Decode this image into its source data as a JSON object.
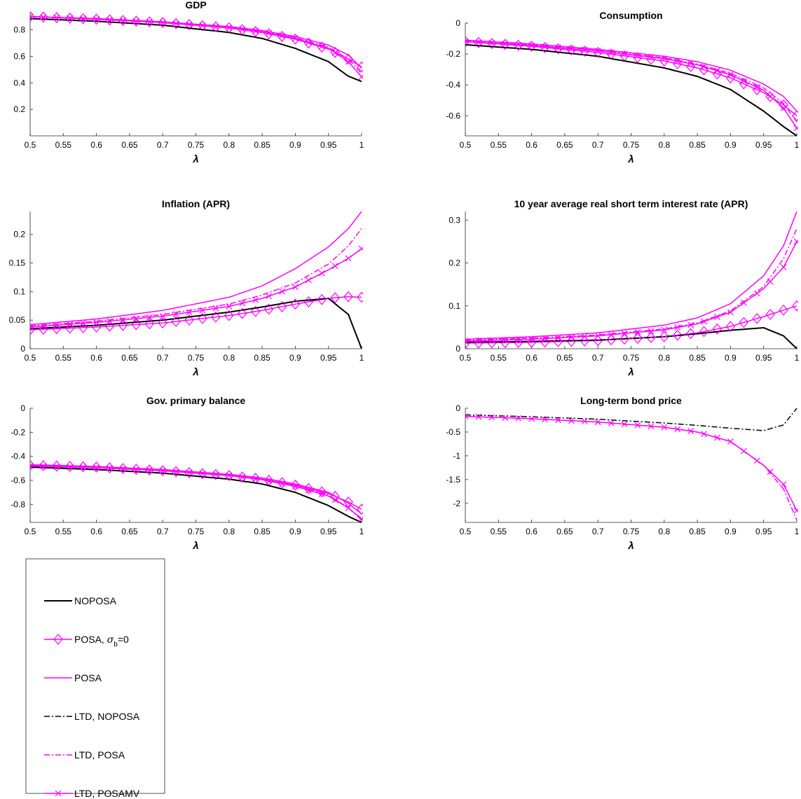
{
  "chart_data": [
    {
      "type": "line",
      "title": "GDP",
      "xlabel": "λ",
      "ylabel": "",
      "xlim": [
        0.5,
        1.0
      ],
      "ylim": [
        0,
        0.93
      ],
      "xticks": [
        "0.5",
        "0.55",
        "0.6",
        "0.65",
        "0.7",
        "0.75",
        "0.8",
        "0.85",
        "0.9",
        "0.95",
        "1"
      ],
      "yticks": [
        "0.2",
        "0.4",
        "0.6",
        "0.8"
      ],
      "ytick_values": [
        0.2,
        0.4,
        0.6,
        0.8
      ],
      "x": [
        0.5,
        0.6,
        0.7,
        0.8,
        0.85,
        0.9,
        0.95,
        0.98,
        1.0
      ],
      "series": [
        {
          "name": "NOPOSA",
          "values": [
            0.885,
            0.865,
            0.835,
            0.78,
            0.735,
            0.66,
            0.56,
            0.45,
            0.41
          ]
        },
        {
          "name": "POSA, σb=0",
          "values": [
            0.9,
            0.88,
            0.855,
            0.815,
            0.78,
            0.73,
            0.655,
            0.58,
            0.52
          ]
        },
        {
          "name": "POSA",
          "values": [
            0.9,
            0.885,
            0.86,
            0.825,
            0.795,
            0.75,
            0.685,
            0.61,
            0.51
          ]
        },
        {
          "name": "LTD, NOPOSA",
          "values": [
            0.885,
            0.865,
            0.835,
            0.78,
            0.735,
            0.66,
            0.56,
            0.45,
            0.41
          ]
        },
        {
          "name": "LTD, POSA",
          "values": [
            0.9,
            0.885,
            0.86,
            0.82,
            0.79,
            0.74,
            0.67,
            0.58,
            0.47
          ]
        },
        {
          "name": "LTD, POSAMV",
          "values": [
            0.9,
            0.88,
            0.855,
            0.815,
            0.785,
            0.735,
            0.66,
            0.56,
            0.445
          ]
        }
      ]
    },
    {
      "type": "line",
      "title": "Consumption",
      "xlabel": "λ",
      "ylabel": "",
      "xlim": [
        0.5,
        1.0
      ],
      "ylim": [
        -0.73,
        0
      ],
      "xticks": [
        "0.5",
        "0.55",
        "0.6",
        "0.65",
        "0.7",
        "0.75",
        "0.8",
        "0.85",
        "0.9",
        "0.95",
        "1"
      ],
      "yticks": [
        "0",
        "-0.2",
        "-0.4",
        "-0.6"
      ],
      "ytick_values": [
        0,
        -0.2,
        -0.4,
        -0.6
      ],
      "x": [
        0.5,
        0.6,
        0.7,
        0.8,
        0.85,
        0.9,
        0.95,
        0.98,
        1.0
      ],
      "series": [
        {
          "name": "NOPOSA",
          "values": [
            -0.14,
            -0.17,
            -0.215,
            -0.29,
            -0.345,
            -0.43,
            -0.57,
            -0.67,
            -0.73
          ]
        },
        {
          "name": "POSA, σb=0",
          "values": [
            -0.12,
            -0.15,
            -0.19,
            -0.245,
            -0.29,
            -0.355,
            -0.45,
            -0.53,
            -0.6
          ]
        },
        {
          "name": "POSA",
          "values": [
            -0.11,
            -0.135,
            -0.17,
            -0.215,
            -0.25,
            -0.305,
            -0.395,
            -0.475,
            -0.57
          ]
        },
        {
          "name": "LTD, NOPOSA",
          "values": [
            -0.14,
            -0.17,
            -0.215,
            -0.29,
            -0.345,
            -0.43,
            -0.57,
            -0.67,
            -0.73
          ]
        },
        {
          "name": "LTD, POSA",
          "values": [
            -0.115,
            -0.14,
            -0.175,
            -0.225,
            -0.265,
            -0.325,
            -0.42,
            -0.52,
            -0.64
          ]
        },
        {
          "name": "LTD, POSAMV",
          "values": [
            -0.12,
            -0.145,
            -0.18,
            -0.23,
            -0.27,
            -0.335,
            -0.435,
            -0.55,
            -0.68
          ]
        }
      ]
    },
    {
      "type": "line",
      "title": "Inflation (APR)",
      "xlabel": "λ",
      "ylabel": "",
      "xlim": [
        0.5,
        1.0
      ],
      "ylim": [
        0,
        0.24
      ],
      "xticks": [
        "0.5",
        "0.55",
        "0.6",
        "0.65",
        "0.7",
        "0.75",
        "0.8",
        "0.85",
        "0.9",
        "0.95",
        "1"
      ],
      "yticks": [
        "0",
        "0.05",
        "0.1",
        "0.15",
        "0.2"
      ],
      "ytick_values": [
        0,
        0.05,
        0.1,
        0.15,
        0.2
      ],
      "x": [
        0.5,
        0.6,
        0.7,
        0.8,
        0.85,
        0.9,
        0.95,
        0.98,
        1.0
      ],
      "series": [
        {
          "name": "NOPOSA",
          "values": [
            0.035,
            0.041,
            0.05,
            0.064,
            0.073,
            0.083,
            0.088,
            0.06,
            0.0
          ]
        },
        {
          "name": "POSA, σb=0",
          "values": [
            0.033,
            0.038,
            0.045,
            0.058,
            0.067,
            0.078,
            0.088,
            0.091,
            0.09
          ]
        },
        {
          "name": "POSA",
          "values": [
            0.042,
            0.052,
            0.067,
            0.09,
            0.11,
            0.14,
            0.178,
            0.21,
            0.24
          ]
        },
        {
          "name": "LTD, NOPOSA",
          "values": [
            0.035,
            0.041,
            0.05,
            0.064,
            0.073,
            0.083,
            0.088,
            0.06,
            0.0
          ]
        },
        {
          "name": "LTD, POSA",
          "values": [
            0.04,
            0.048,
            0.06,
            0.078,
            0.094,
            0.115,
            0.148,
            0.18,
            0.21
          ]
        },
        {
          "name": "LTD, POSAMV",
          "values": [
            0.038,
            0.046,
            0.057,
            0.074,
            0.088,
            0.108,
            0.138,
            0.158,
            0.175
          ]
        }
      ]
    },
    {
      "type": "line",
      "title": "10 year average real short term interest rate (APR)",
      "xlabel": "λ",
      "ylabel": "",
      "xlim": [
        0.5,
        1.0
      ],
      "ylim": [
        0,
        0.32
      ],
      "xticks": [
        "0.5",
        "0.55",
        "0.6",
        "0.65",
        "0.7",
        "0.75",
        "0.8",
        "0.85",
        "0.9",
        "0.95",
        "1"
      ],
      "yticks": [
        "0",
        "0.1",
        "0.2",
        "0.3"
      ],
      "ytick_values": [
        0,
        0.1,
        0.2,
        0.3
      ],
      "x": [
        0.5,
        0.6,
        0.7,
        0.8,
        0.85,
        0.9,
        0.95,
        0.98,
        1.0
      ],
      "series": [
        {
          "name": "NOPOSA",
          "values": [
            0.015,
            0.017,
            0.02,
            0.028,
            0.035,
            0.043,
            0.049,
            0.03,
            0.0
          ]
        },
        {
          "name": "POSA, σb=0",
          "values": [
            0.013,
            0.015,
            0.019,
            0.028,
            0.037,
            0.052,
            0.075,
            0.09,
            0.1
          ]
        },
        {
          "name": "POSA",
          "values": [
            0.022,
            0.028,
            0.037,
            0.055,
            0.072,
            0.105,
            0.17,
            0.24,
            0.32
          ]
        },
        {
          "name": "LTD, NOPOSA",
          "values": [
            0.015,
            0.017,
            0.02,
            0.028,
            0.035,
            0.043,
            0.049,
            0.03,
            0.0
          ]
        },
        {
          "name": "LTD, POSA",
          "values": [
            0.02,
            0.025,
            0.032,
            0.046,
            0.06,
            0.088,
            0.145,
            0.21,
            0.28
          ]
        },
        {
          "name": "LTD, POSAMV",
          "values": [
            0.018,
            0.022,
            0.03,
            0.044,
            0.058,
            0.085,
            0.14,
            0.19,
            0.25
          ]
        }
      ]
    },
    {
      "type": "line",
      "title": "Gov. primary balance",
      "xlabel": "λ",
      "ylabel": "",
      "xlim": [
        0.5,
        1.0
      ],
      "ylim": [
        -0.95,
        0
      ],
      "xticks": [
        "0.5",
        "0.55",
        "0.6",
        "0.65",
        "0.7",
        "0.75",
        "0.8",
        "0.85",
        "0.9",
        "0.95",
        "1"
      ],
      "yticks": [
        "0",
        "-0.2",
        "-0.4",
        "-0.6",
        "-0.8"
      ],
      "ytick_values": [
        0,
        -0.2,
        -0.4,
        -0.6,
        -0.8
      ],
      "x": [
        0.5,
        0.6,
        0.7,
        0.8,
        0.85,
        0.9,
        0.95,
        0.98,
        1.0
      ],
      "series": [
        {
          "name": "NOPOSA",
          "values": [
            -0.49,
            -0.51,
            -0.54,
            -0.59,
            -0.63,
            -0.7,
            -0.81,
            -0.9,
            -0.95
          ]
        },
        {
          "name": "POSA, σb=0",
          "values": [
            -0.475,
            -0.49,
            -0.52,
            -0.56,
            -0.59,
            -0.64,
            -0.71,
            -0.78,
            -0.84
          ]
        },
        {
          "name": "POSA",
          "values": [
            -0.47,
            -0.485,
            -0.51,
            -0.55,
            -0.58,
            -0.63,
            -0.7,
            -0.79,
            -0.88
          ]
        },
        {
          "name": "LTD, NOPOSA",
          "values": [
            -0.49,
            -0.51,
            -0.54,
            -0.59,
            -0.63,
            -0.7,
            -0.81,
            -0.9,
            -0.95
          ]
        },
        {
          "name": "LTD, POSA",
          "values": [
            -0.475,
            -0.49,
            -0.515,
            -0.555,
            -0.59,
            -0.64,
            -0.72,
            -0.83,
            -0.93
          ]
        },
        {
          "name": "LTD, POSAMV",
          "values": [
            -0.48,
            -0.495,
            -0.52,
            -0.56,
            -0.595,
            -0.65,
            -0.73,
            -0.83,
            -0.92
          ]
        }
      ]
    },
    {
      "type": "line",
      "title": "Long-term bond price",
      "xlabel": "λ",
      "ylabel": "",
      "xlim": [
        0.5,
        1.0
      ],
      "ylim": [
        -2.4,
        0
      ],
      "xticks": [
        "0.5",
        "0.55",
        "0.6",
        "0.65",
        "0.7",
        "0.75",
        "0.8",
        "0.85",
        "0.9",
        "0.95",
        "1"
      ],
      "yticks": [
        "0",
        "-0.5",
        "-1",
        "-1.5",
        "-2"
      ],
      "ytick_values": [
        0,
        -0.5,
        -1,
        -1.5,
        -2
      ],
      "x": [
        0.5,
        0.6,
        0.7,
        0.8,
        0.85,
        0.9,
        0.95,
        0.98,
        1.0
      ],
      "series": [
        {
          "name": "LTD, NOPOSA",
          "values": [
            -0.14,
            -0.18,
            -0.23,
            -0.31,
            -0.36,
            -0.42,
            -0.47,
            -0.35,
            0.0
          ]
        },
        {
          "name": "LTD, POSA",
          "values": [
            -0.17,
            -0.22,
            -0.29,
            -0.4,
            -0.5,
            -0.7,
            -1.2,
            -1.7,
            -2.35
          ]
        },
        {
          "name": "LTD, POSAMV",
          "values": [
            -0.17,
            -0.22,
            -0.29,
            -0.4,
            -0.5,
            -0.7,
            -1.2,
            -1.6,
            -2.15
          ]
        }
      ]
    }
  ],
  "legend": {
    "placement": "bottom-left",
    "entries": [
      {
        "label": "NOPOSA",
        "color": "#000000",
        "dash": "solid",
        "marker": "none"
      },
      {
        "label": "POSA, ",
        "sym": "σ",
        "sub": "b",
        "tail": "=0",
        "color": "#ff00ff",
        "dash": "solid",
        "marker": "diamond"
      },
      {
        "label": "POSA",
        "color": "#ff00ff",
        "dash": "solid",
        "marker": "none"
      },
      {
        "label": "LTD, NOPOSA",
        "color": "#000000",
        "dash": "dashdot",
        "marker": "none"
      },
      {
        "label": "LTD, POSA",
        "color": "#ff00ff",
        "dash": "dashdot",
        "marker": "none"
      },
      {
        "label": "LTD, POSAMV",
        "color": "#ff00ff",
        "dash": "solid",
        "marker": "x"
      }
    ]
  },
  "colors": {
    "black": "#000000",
    "magenta": "#ff00ff"
  }
}
